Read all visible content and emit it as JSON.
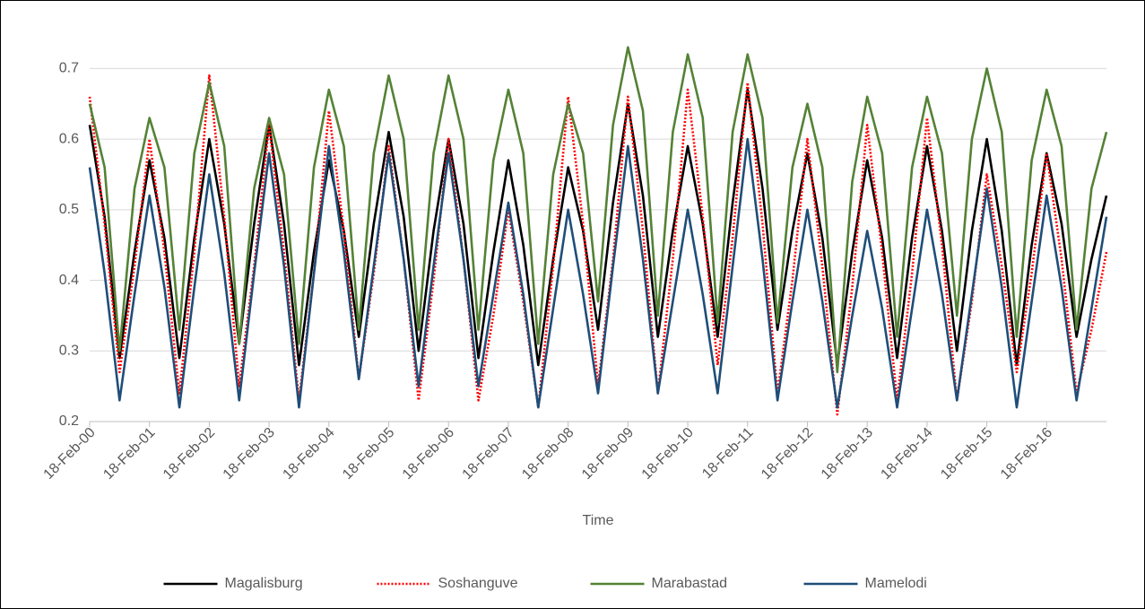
{
  "chart_data": {
    "type": "line",
    "xlabel": "Time",
    "grid": true,
    "legend": "bottom",
    "x": [
      0,
      0.25,
      0.5,
      0.75,
      1,
      1.25,
      1.5,
      1.75,
      2,
      2.25,
      2.5,
      2.75,
      3,
      3.25,
      3.5,
      3.75,
      4,
      4.25,
      4.5,
      4.75,
      5,
      5.25,
      5.5,
      5.75,
      6,
      6.25,
      6.5,
      6.75,
      7,
      7.25,
      7.5,
      7.75,
      8,
      8.25,
      8.5,
      8.75,
      9,
      9.25,
      9.5,
      9.75,
      10,
      10.25,
      10.5,
      10.75,
      11,
      11.25,
      11.5,
      11.75,
      12,
      12.25,
      12.5,
      12.75,
      13,
      13.25,
      13.5,
      13.75,
      14,
      14.25,
      14.5,
      14.75,
      15,
      15.25,
      15.5,
      15.75,
      16,
      16.25,
      16.5,
      16.75,
      17
    ],
    "xlim": [
      0,
      17
    ],
    "xticks": [
      {
        "value": 0,
        "label": "18-Feb-00"
      },
      {
        "value": 1,
        "label": "18-Feb-01"
      },
      {
        "value": 2,
        "label": "18-Feb-02"
      },
      {
        "value": 3,
        "label": "18-Feb-03"
      },
      {
        "value": 4,
        "label": "18-Feb-04"
      },
      {
        "value": 5,
        "label": "18-Feb-05"
      },
      {
        "value": 6,
        "label": "18-Feb-06"
      },
      {
        "value": 7,
        "label": "18-Feb-07"
      },
      {
        "value": 8,
        "label": "18-Feb-08"
      },
      {
        "value": 9,
        "label": "18-Feb-09"
      },
      {
        "value": 10,
        "label": "18-Feb-10"
      },
      {
        "value": 11,
        "label": "18-Feb-11"
      },
      {
        "value": 12,
        "label": "18-Feb-12"
      },
      {
        "value": 13,
        "label": "18-Feb-13"
      },
      {
        "value": 14,
        "label": "18-Feb-14"
      },
      {
        "value": 15,
        "label": "18-Feb-15"
      },
      {
        "value": 16,
        "label": "18-Feb-16"
      }
    ],
    "ylim": [
      0.2,
      0.75
    ],
    "yticks": [
      0.2,
      0.3,
      0.4,
      0.5,
      0.6,
      0.7
    ],
    "series": [
      {
        "name": "Magalisburg",
        "color": "#000000",
        "dash": "solid",
        "values": [
          0.62,
          0.49,
          0.29,
          0.44,
          0.57,
          0.46,
          0.29,
          0.46,
          0.6,
          0.48,
          0.31,
          0.48,
          0.62,
          0.48,
          0.28,
          0.44,
          0.57,
          0.47,
          0.32,
          0.48,
          0.61,
          0.49,
          0.3,
          0.47,
          0.6,
          0.48,
          0.29,
          0.44,
          0.57,
          0.45,
          0.28,
          0.43,
          0.56,
          0.47,
          0.33,
          0.51,
          0.65,
          0.52,
          0.32,
          0.47,
          0.59,
          0.48,
          0.32,
          0.51,
          0.67,
          0.53,
          0.33,
          0.47,
          0.58,
          0.46,
          0.28,
          0.44,
          0.57,
          0.46,
          0.29,
          0.46,
          0.59,
          0.47,
          0.3,
          0.47,
          0.6,
          0.47,
          0.28,
          0.45,
          0.58,
          0.48,
          0.32,
          0.43,
          0.52
        ]
      },
      {
        "name": "Soshanguve",
        "color": "#ff0000",
        "dash": "dotted",
        "values": [
          0.66,
          0.48,
          0.27,
          0.42,
          0.6,
          0.44,
          0.24,
          0.44,
          0.69,
          0.49,
          0.25,
          0.42,
          0.62,
          0.44,
          0.23,
          0.41,
          0.64,
          0.47,
          0.26,
          0.41,
          0.59,
          0.43,
          0.23,
          0.4,
          0.6,
          0.43,
          0.23,
          0.35,
          0.5,
          0.37,
          0.22,
          0.42,
          0.66,
          0.48,
          0.25,
          0.43,
          0.66,
          0.47,
          0.24,
          0.43,
          0.67,
          0.49,
          0.28,
          0.46,
          0.68,
          0.48,
          0.24,
          0.4,
          0.6,
          0.42,
          0.21,
          0.39,
          0.62,
          0.44,
          0.23,
          0.41,
          0.63,
          0.45,
          0.23,
          0.37,
          0.55,
          0.42,
          0.27,
          0.41,
          0.58,
          0.43,
          0.24,
          0.33,
          0.44
        ]
      },
      {
        "name": "Marabastad",
        "color": "#548235",
        "dash": "solid",
        "values": [
          0.65,
          0.56,
          0.3,
          0.53,
          0.63,
          0.56,
          0.33,
          0.58,
          0.68,
          0.59,
          0.31,
          0.53,
          0.63,
          0.55,
          0.31,
          0.56,
          0.67,
          0.59,
          0.33,
          0.58,
          0.69,
          0.6,
          0.33,
          0.58,
          0.69,
          0.6,
          0.33,
          0.57,
          0.67,
          0.58,
          0.31,
          0.55,
          0.65,
          0.58,
          0.37,
          0.62,
          0.73,
          0.64,
          0.35,
          0.61,
          0.72,
          0.63,
          0.34,
          0.61,
          0.72,
          0.63,
          0.34,
          0.56,
          0.65,
          0.56,
          0.27,
          0.54,
          0.66,
          0.58,
          0.32,
          0.56,
          0.66,
          0.58,
          0.35,
          0.6,
          0.7,
          0.61,
          0.32,
          0.57,
          0.67,
          0.59,
          0.33,
          0.53,
          0.61
        ]
      },
      {
        "name": "Mamelodi",
        "color": "#1f4e79",
        "dash": "solid",
        "values": [
          0.56,
          0.41,
          0.23,
          0.38,
          0.52,
          0.39,
          0.22,
          0.39,
          0.55,
          0.41,
          0.23,
          0.41,
          0.58,
          0.42,
          0.22,
          0.41,
          0.59,
          0.44,
          0.26,
          0.42,
          0.58,
          0.43,
          0.25,
          0.42,
          0.58,
          0.43,
          0.25,
          0.38,
          0.51,
          0.38,
          0.22,
          0.36,
          0.5,
          0.38,
          0.24,
          0.42,
          0.59,
          0.43,
          0.24,
          0.37,
          0.5,
          0.38,
          0.24,
          0.42,
          0.6,
          0.43,
          0.23,
          0.37,
          0.5,
          0.37,
          0.22,
          0.35,
          0.47,
          0.36,
          0.22,
          0.36,
          0.5,
          0.38,
          0.23,
          0.38,
          0.53,
          0.39,
          0.22,
          0.37,
          0.52,
          0.39,
          0.23,
          0.36,
          0.49
        ]
      }
    ]
  }
}
